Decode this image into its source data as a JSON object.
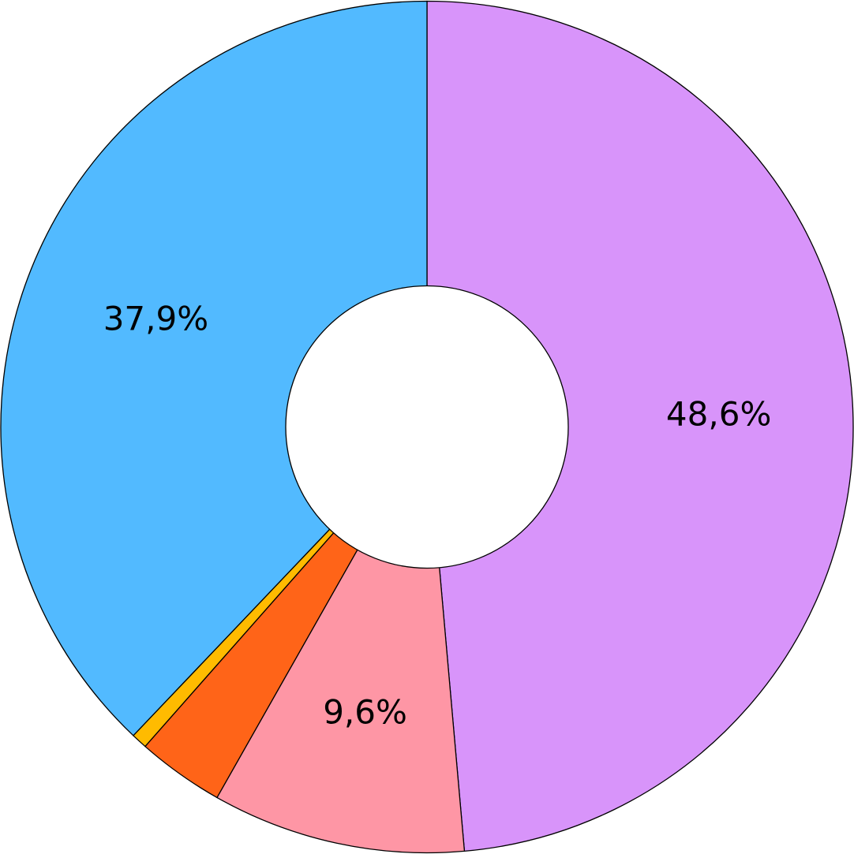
{
  "chart_data": {
    "type": "pie",
    "variant": "donut",
    "title": "",
    "start_direction": "12 o'clock, clockwise",
    "slices": [
      {
        "value": 48.6,
        "label": "48,6%",
        "color": "#D894FA"
      },
      {
        "value": 9.6,
        "label": "9,6%",
        "color": "#FE96A5"
      },
      {
        "value": 3.3,
        "label": "",
        "color": "#FF6418"
      },
      {
        "value": 0.6,
        "label": "",
        "color": "#FFBB00"
      },
      {
        "value": 37.9,
        "label": "37,9%",
        "color": "#52BAFF"
      }
    ],
    "legend": "none"
  }
}
